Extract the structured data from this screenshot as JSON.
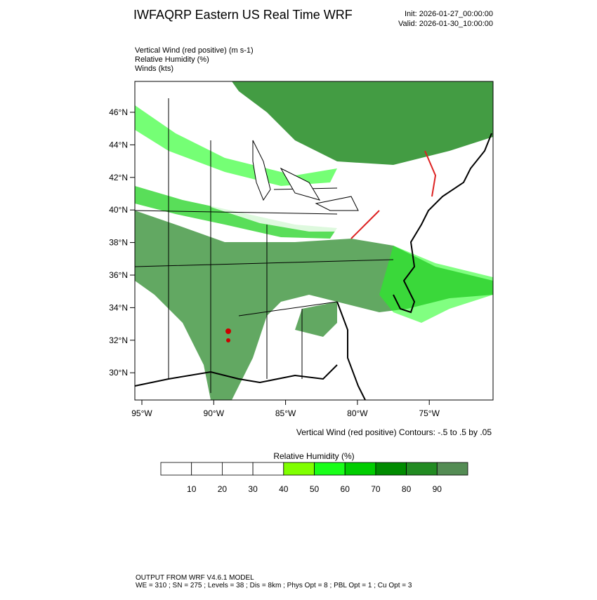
{
  "header": {
    "title": "IWFAQRP Eastern US Real Time WRF",
    "init": "Init: 2026-01-27_00:00:00",
    "valid": "Valid: 2026-01-30_10:00:00"
  },
  "fields": [
    "Vertical Wind (red positive)   (m s-1)",
    "Relative Humidity   (%)",
    "Winds   (kts)"
  ],
  "map": {
    "lat_labels": [
      "46°N",
      "44°N",
      "42°N",
      "40°N",
      "38°N",
      "36°N",
      "34°N",
      "32°N",
      "30°N"
    ],
    "lon_labels": [
      "95°W",
      "90°W",
      "85°W",
      "80°W",
      "75°W"
    ],
    "contour_note": "Vertical Wind (red positive) Contours: -.5 to .5 by .05"
  },
  "colorbar": {
    "title": "Relative Humidity  (%)",
    "ticks": [
      10,
      20,
      30,
      40,
      50,
      60,
      70,
      80,
      90
    ],
    "colors": [
      "#ffffff",
      "#ffffff",
      "#ffffff",
      "#ffffff",
      "#80ff00",
      "#19ff19",
      "#00cd00",
      "#008b00",
      "#228b22",
      "#548c54"
    ]
  },
  "footer": {
    "line1": "OUTPUT FROM WRF V4.6.1 MODEL",
    "line2": "WE = 310 ; SN = 275 ; Levels = 38 ; Dis = 8km ; Phys Opt = 8 ; PBL Opt = 1 ; Cu Opt = 3"
  }
}
